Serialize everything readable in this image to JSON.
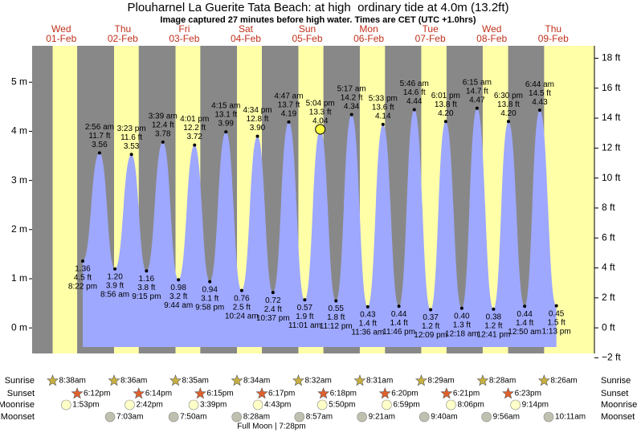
{
  "chart_data": {
    "type": "tide",
    "title": "Plouharnel La Guerite Tata Beach: at high  ordinary tide at 4.0m (13.2ft)",
    "subtitle": "Image captured 27 minutes before high water. Times are CET (UTC +1.0hrs)",
    "days": [
      {
        "weekday": "Wed",
        "date": "01-Feb"
      },
      {
        "weekday": "Thu",
        "date": "02-Feb"
      },
      {
        "weekday": "Fri",
        "date": "03-Feb"
      },
      {
        "weekday": "Sat",
        "date": "04-Feb"
      },
      {
        "weekday": "Sun",
        "date": "05-Feb"
      },
      {
        "weekday": "Mon",
        "date": "06-Feb"
      },
      {
        "weekday": "Tue",
        "date": "07-Feb"
      },
      {
        "weekday": "Wed",
        "date": "08-Feb"
      },
      {
        "weekday": "Thu",
        "date": "09-Feb"
      }
    ],
    "ylim": [
      -0.52,
      5.74
    ],
    "yticks": [
      {
        "value": 0,
        "label": "0 m"
      },
      {
        "value": 1,
        "label": "1 m"
      },
      {
        "value": 2,
        "label": "2 m"
      },
      {
        "value": 3,
        "label": "3 m"
      },
      {
        "value": 4,
        "label": "4 m"
      },
      {
        "value": 5,
        "label": "5 m"
      }
    ],
    "y2lim": [
      -1.71,
      18.83
    ],
    "y2ticks": [
      {
        "value": -2,
        "label": "−2 ft"
      },
      {
        "value": 0,
        "label": "0 ft"
      },
      {
        "value": 2,
        "label": "2 ft"
      },
      {
        "value": 4,
        "label": "4 ft"
      },
      {
        "value": 6,
        "label": "6 ft"
      },
      {
        "value": 8,
        "label": "8 ft"
      },
      {
        "value": 10,
        "label": "10 ft"
      },
      {
        "value": 12,
        "label": "12 ft"
      },
      {
        "value": 14,
        "label": "14 ft"
      },
      {
        "value": 16,
        "label": "16 ft"
      },
      {
        "value": 18,
        "label": "18 ft"
      }
    ],
    "tides": {
      "dates": [
        "01-Feb",
        "02-Feb",
        "02-Feb",
        "02-Feb",
        "02-Feb",
        "03-Feb",
        "03-Feb",
        "03-Feb",
        "03-Feb",
        "04-Feb",
        "04-Feb",
        "04-Feb",
        "04-Feb",
        "05-Feb",
        "05-Feb",
        "05-Feb",
        "05-Feb",
        "06-Feb",
        "06-Feb",
        "06-Feb",
        "06-Feb",
        "07-Feb",
        "07-Feb",
        "07-Feb",
        "08-Feb",
        "08-Feb",
        "08-Feb",
        "08-Feb",
        "09-Feb",
        "09-Feb",
        "09-Feb"
      ],
      "times": [
        "8:22 pm",
        "2:56 am",
        "8:56 am",
        "3:23 pm",
        "9:15 pm",
        "3:39 am",
        "9:44 am",
        "4:01 pm",
        "9:58 pm",
        "4:15 am",
        "10:24 am",
        "4:34 pm",
        "10:37 pm",
        "4:47 am",
        "11:01 am",
        "5:04 pm",
        "11:12 pm",
        "5:17 am",
        "11:36 am",
        "5:33 pm",
        "11:46 pm",
        "5:46 am",
        "12:09 pm",
        "6:01 pm",
        "12:18 am",
        "6:15 am",
        "12:41 pm",
        "6:30 pm",
        "12:50 am",
        "6:44 am",
        "1:13 pm"
      ],
      "values": [
        1.36,
        3.56,
        1.2,
        3.53,
        1.16,
        3.78,
        0.98,
        3.72,
        0.94,
        3.99,
        0.76,
        3.9,
        0.72,
        4.19,
        0.57,
        4.04,
        0.55,
        4.34,
        0.43,
        4.14,
        0.44,
        4.44,
        0.37,
        4.2,
        0.4,
        4.47,
        0.38,
        4.2,
        0.44,
        4.43,
        0.45
      ],
      "value_labels": [
        "1.36",
        "3.56",
        "1.20",
        "3.53",
        "1.16",
        "3.78",
        "0.98",
        "3.72",
        "0.94",
        "3.99",
        "0.76",
        "3.90",
        "0.72",
        "4.19",
        "0.57",
        "4.04",
        "0.55",
        "4.34",
        "0.43",
        "4.14",
        "0.44",
        "4.44",
        "0.37",
        "4.20",
        "0.40",
        "4.47",
        "0.38",
        "4.20",
        "0.44",
        "4.43",
        "0.45"
      ],
      "ft_labels": [
        "4.5 ft",
        "11.7 ft",
        "3.9 ft",
        "11.6 ft",
        "3.8 ft",
        "12.4 ft",
        "3.2 ft",
        "12.2 ft",
        "3.1 ft",
        "13.1 ft",
        "2.5 ft",
        "12.8 ft",
        "2.4 ft",
        "13.7 ft",
        "1.9 ft",
        "13.3 ft",
        "1.8 ft",
        "14.2 ft",
        "1.4 ft",
        "13.6 ft",
        "1.4 ft",
        "14.6 ft",
        "1.2 ft",
        "13.8 ft",
        "1.3 ft",
        "14.7 ft",
        "1.2 ft",
        "13.8 ft",
        "1.4 ft",
        "14.5 ft",
        "1.5 ft"
      ]
    },
    "row_labels": [
      "Sunrise",
      "Sunset",
      "Moonrise",
      "Moonset"
    ],
    "sunrise": [
      "8:38am",
      "8:36am",
      "8:35am",
      "8:34am",
      "8:32am",
      "8:31am",
      "8:29am",
      "8:28am",
      "8:26am"
    ],
    "sunset": [
      "6:12pm",
      "6:14pm",
      "6:15pm",
      "6:17pm",
      "6:18pm",
      "6:20pm",
      "6:21pm",
      "6:23pm",
      null
    ],
    "moonrise": [
      "1:53pm",
      "2:42pm",
      "3:39pm",
      "4:43pm",
      "5:50pm",
      "6:59pm",
      "8:06pm",
      "9:14pm",
      null
    ],
    "moonset": [
      null,
      "7:03am",
      "7:50am",
      "8:28am",
      "8:57am",
      "9:21am",
      "9:40am",
      "9:56am",
      "10:11am"
    ],
    "moon_phase": "Full Moon | 7:28pm"
  }
}
